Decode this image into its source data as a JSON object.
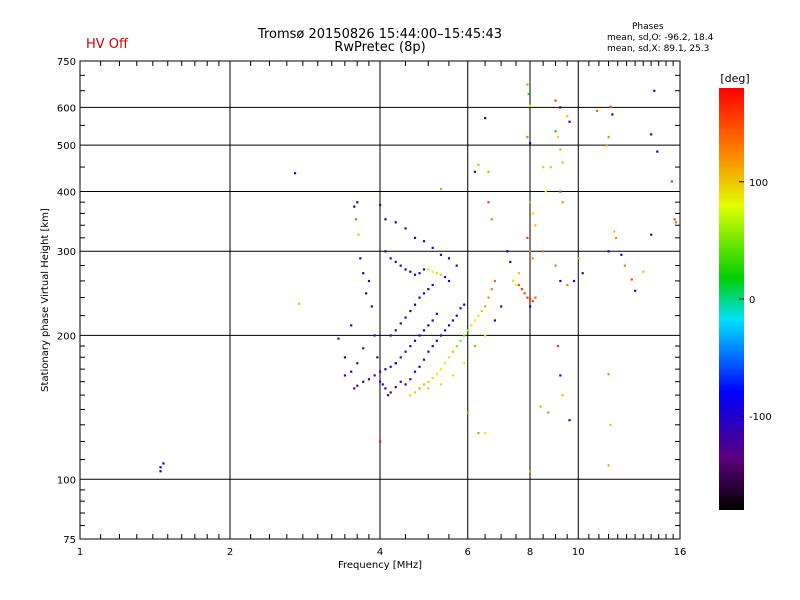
{
  "title_line1": "Tromsø 20150826 15:44:00–15:45:43",
  "title_line2": "RwPretec (8p)",
  "hv_status": "HV Off",
  "phase_stats": {
    "heading": "Phases",
    "o_mode": "mean, sd,O: -96.2, 18.4",
    "x_mode": "mean, sd,X:  89.1, 25.3"
  },
  "colorbar": {
    "label": "[deg]",
    "ticks": [
      "100",
      "0",
      "-100"
    ],
    "tick_values": [
      100,
      0,
      -100
    ],
    "range": [
      -180,
      180
    ],
    "colormap": "rainbow (black-purple-blue-cyan-green-yellow-orange-red)"
  },
  "chart_data": {
    "type": "scatter",
    "xlabel": "Frequency [MHz]",
    "ylabel": "Stationary phase Virtual Height [km]",
    "xscale": "log",
    "yscale": "log",
    "xlim": [
      1,
      16
    ],
    "ylim": [
      75,
      750
    ],
    "xticks": [
      1,
      2,
      4,
      6,
      8,
      10,
      16
    ],
    "xtick_labels": [
      "1",
      "2",
      "4",
      "6",
      "8",
      "10",
      "16"
    ],
    "yticks": [
      75,
      100,
      200,
      300,
      400,
      500,
      600,
      750
    ],
    "ytick_labels": [
      "75",
      "100",
      "200",
      "300",
      "400",
      "500",
      "600",
      "750"
    ],
    "grid": true,
    "color_encodes": "phase [deg]",
    "points": [
      [
        1.45,
        106,
        -90
      ],
      [
        1.47,
        108,
        -95
      ],
      [
        1.45,
        104,
        -100
      ],
      [
        2.7,
        437,
        -95
      ],
      [
        2.75,
        233,
        100
      ],
      [
        3.3,
        197,
        -120
      ],
      [
        3.4,
        165,
        -130
      ],
      [
        3.5,
        168,
        -125
      ],
      [
        3.6,
        175,
        -125
      ],
      [
        3.7,
        188,
        -120
      ],
      [
        3.4,
        180,
        -115
      ],
      [
        3.5,
        210,
        -110
      ],
      [
        3.55,
        372,
        -100
      ],
      [
        3.6,
        380,
        -100
      ],
      [
        3.58,
        350,
        140
      ],
      [
        3.62,
        325,
        60
      ],
      [
        3.65,
        290,
        -100
      ],
      [
        3.7,
        270,
        -95
      ],
      [
        3.75,
        245,
        -100
      ],
      [
        3.8,
        260,
        -100
      ],
      [
        3.85,
        230,
        -110
      ],
      [
        3.9,
        200,
        -115
      ],
      [
        3.95,
        180,
        -120
      ],
      [
        4.0,
        160,
        -130
      ],
      [
        4.05,
        158,
        -125
      ],
      [
        4.1,
        155,
        -120
      ],
      [
        4.15,
        150,
        -115
      ],
      [
        4.2,
        152,
        -110
      ],
      [
        4.3,
        156,
        -115
      ],
      [
        4.4,
        160,
        -120
      ],
      [
        4.5,
        158,
        -110
      ],
      [
        4.6,
        162,
        -105
      ],
      [
        4.7,
        168,
        -95
      ],
      [
        4.8,
        172,
        -100
      ],
      [
        4.9,
        178,
        -100
      ],
      [
        5.0,
        185,
        -100
      ],
      [
        5.1,
        190,
        -100
      ],
      [
        5.2,
        195,
        -105
      ],
      [
        5.3,
        200,
        -110
      ],
      [
        5.4,
        205,
        -110
      ],
      [
        5.5,
        210,
        -100
      ],
      [
        5.6,
        215,
        -100
      ],
      [
        5.7,
        220,
        -95
      ],
      [
        5.8,
        228,
        -90
      ],
      [
        5.9,
        232,
        -100
      ],
      [
        4.1,
        300,
        -100
      ],
      [
        4.2,
        290,
        -100
      ],
      [
        4.3,
        285,
        -105
      ],
      [
        4.4,
        280,
        -110
      ],
      [
        4.5,
        275,
        -100
      ],
      [
        4.6,
        272,
        -100
      ],
      [
        4.7,
        268,
        -95
      ],
      [
        4.8,
        270,
        -100
      ],
      [
        4.9,
        275,
        -95
      ],
      [
        5.0,
        275,
        90
      ],
      [
        5.1,
        272,
        80
      ],
      [
        5.2,
        270,
        70
      ],
      [
        5.3,
        268,
        60
      ],
      [
        5.4,
        265,
        -100
      ],
      [
        5.5,
        260,
        -100
      ],
      [
        4.2,
        200,
        -120
      ],
      [
        4.3,
        205,
        -115
      ],
      [
        4.4,
        212,
        -110
      ],
      [
        4.5,
        218,
        -105
      ],
      [
        4.6,
        225,
        -100
      ],
      [
        4.7,
        232,
        -100
      ],
      [
        4.8,
        240,
        -100
      ],
      [
        4.9,
        245,
        -95
      ],
      [
        5.0,
        250,
        -100
      ],
      [
        5.1,
        255,
        -100
      ],
      [
        4.3,
        175,
        -125
      ],
      [
        4.4,
        180,
        -120
      ],
      [
        4.5,
        185,
        -115
      ],
      [
        4.6,
        190,
        -110
      ],
      [
        4.7,
        195,
        -105
      ],
      [
        4.8,
        200,
        -100
      ],
      [
        4.9,
        205,
        -100
      ],
      [
        5.0,
        210,
        -100
      ],
      [
        5.1,
        215,
        -100
      ],
      [
        5.2,
        222,
        -95
      ],
      [
        4.6,
        150,
        90
      ],
      [
        4.7,
        152,
        100
      ],
      [
        4.8,
        155,
        110
      ],
      [
        4.9,
        158,
        100
      ],
      [
        5.0,
        160,
        95
      ],
      [
        5.1,
        163,
        90
      ],
      [
        5.2,
        166,
        85
      ],
      [
        5.3,
        170,
        80
      ],
      [
        5.4,
        175,
        75
      ],
      [
        5.5,
        180,
        70
      ],
      [
        5.6,
        185,
        60
      ],
      [
        5.7,
        190,
        55
      ],
      [
        5.8,
        195,
        50
      ],
      [
        5.9,
        200,
        45
      ],
      [
        6.0,
        205,
        60
      ],
      [
        6.1,
        210,
        70
      ],
      [
        6.2,
        215,
        80
      ],
      [
        6.3,
        220,
        90
      ],
      [
        6.4,
        225,
        100
      ],
      [
        6.5,
        230,
        110
      ],
      [
        6.6,
        240,
        120
      ],
      [
        6.7,
        250,
        130
      ],
      [
        6.8,
        260,
        140
      ],
      [
        7.6,
        255,
        150
      ],
      [
        7.7,
        250,
        160
      ],
      [
        7.8,
        245,
        150
      ],
      [
        7.9,
        240,
        155
      ],
      [
        8.0,
        238,
        160
      ],
      [
        8.1,
        236,
        150
      ],
      [
        8.2,
        240,
        140
      ],
      [
        4.0,
        375,
        -110
      ],
      [
        4.1,
        350,
        -105
      ],
      [
        4.3,
        345,
        -100
      ],
      [
        4.5,
        335,
        -100
      ],
      [
        4.7,
        320,
        -100
      ],
      [
        4.9,
        315,
        -95
      ],
      [
        5.1,
        305,
        -100
      ],
      [
        5.3,
        295,
        -100
      ],
      [
        5.5,
        290,
        -100
      ],
      [
        5.7,
        280,
        -100
      ],
      [
        5.3,
        405,
        120
      ],
      [
        6.2,
        440,
        -95
      ],
      [
        6.5,
        570,
        -95
      ],
      [
        6.3,
        455,
        110
      ],
      [
        6.6,
        380,
        160
      ],
      [
        6.7,
        350,
        130
      ],
      [
        7.9,
        670,
        40
      ],
      [
        7.95,
        640,
        20
      ],
      [
        8.0,
        605,
        80
      ],
      [
        7.9,
        520,
        130
      ],
      [
        8.0,
        505,
        -95
      ],
      [
        9.0,
        620,
        150
      ],
      [
        9.2,
        600,
        -100
      ],
      [
        9.0,
        535,
        20
      ],
      [
        9.1,
        520,
        90
      ],
      [
        9.2,
        490,
        110
      ],
      [
        9.3,
        460,
        100
      ],
      [
        9.2,
        400,
        160
      ],
      [
        9.3,
        380,
        120
      ],
      [
        9.5,
        575,
        100
      ],
      [
        9.6,
        560,
        -95
      ],
      [
        8.5,
        450,
        60
      ],
      [
        8.6,
        400,
        80
      ],
      [
        8.8,
        450,
        100
      ],
      [
        8.0,
        380,
        110
      ],
      [
        8.1,
        360,
        90
      ],
      [
        8.2,
        340,
        100
      ],
      [
        7.9,
        320,
        150
      ],
      [
        8.0,
        300,
        130
      ],
      [
        8.1,
        290,
        120
      ],
      [
        8.5,
        300,
        140
      ],
      [
        9.0,
        280,
        130
      ],
      [
        9.2,
        260,
        -100
      ],
      [
        9.5,
        255,
        130
      ],
      [
        9.8,
        260,
        -95
      ],
      [
        10.9,
        590,
        140
      ],
      [
        11.6,
        602,
        150
      ],
      [
        11.7,
        580,
        -95
      ],
      [
        11.5,
        520,
        40
      ],
      [
        11.4,
        500,
        120
      ],
      [
        11.8,
        330,
        100
      ],
      [
        11.9,
        320,
        120
      ],
      [
        11.5,
        300,
        -100
      ],
      [
        12.2,
        295,
        -95
      ],
      [
        12.4,
        280,
        130
      ],
      [
        12.8,
        262,
        150
      ],
      [
        13.0,
        248,
        -110
      ],
      [
        13.5,
        272,
        60
      ],
      [
        14.2,
        650,
        -110
      ],
      [
        14.0,
        527,
        -95
      ],
      [
        14.4,
        485,
        -110
      ],
      [
        14.0,
        325,
        -100
      ],
      [
        15.4,
        420,
        160
      ],
      [
        15.6,
        350,
        150
      ],
      [
        15.7,
        345,
        140
      ],
      [
        11.5,
        166,
        120
      ],
      [
        11.6,
        130,
        100
      ],
      [
        11.5,
        107,
        110
      ],
      [
        10.0,
        290,
        120
      ],
      [
        10.2,
        270,
        -100
      ],
      [
        8.0,
        104,
        110
      ],
      [
        8.4,
        142,
        110
      ],
      [
        8.7,
        138,
        40
      ],
      [
        9.3,
        150,
        100
      ],
      [
        9.1,
        190,
        160
      ],
      [
        9.6,
        133,
        -95
      ],
      [
        9.2,
        165,
        -105
      ],
      [
        6.3,
        125,
        40
      ],
      [
        6.5,
        125,
        80
      ],
      [
        6.0,
        138,
        40
      ],
      [
        7.5,
        255,
        80
      ],
      [
        7.4,
        260,
        90
      ],
      [
        7.6,
        270,
        100
      ],
      [
        7.2,
        300,
        -100
      ],
      [
        7.3,
        285,
        -95
      ],
      [
        4.0,
        120,
        170
      ],
      [
        3.55,
        155,
        -130
      ],
      [
        3.6,
        157,
        -125
      ],
      [
        3.7,
        160,
        -120
      ],
      [
        3.8,
        162,
        -125
      ],
      [
        3.9,
        165,
        -120
      ],
      [
        4.0,
        168,
        -118
      ],
      [
        4.1,
        170,
        -115
      ],
      [
        4.2,
        172,
        -112
      ],
      [
        4.3,
        175,
        -110
      ],
      [
        6.6,
        440,
        110
      ],
      [
        8.0,
        230,
        -100
      ],
      [
        7.0,
        230,
        -95
      ],
      [
        6.8,
        215,
        -100
      ],
      [
        6.5,
        200,
        90
      ],
      [
        6.2,
        190,
        120
      ],
      [
        5.9,
        175,
        80
      ],
      [
        5.6,
        165,
        70
      ],
      [
        5.3,
        158,
        90
      ],
      [
        5.0,
        155,
        100
      ]
    ]
  }
}
